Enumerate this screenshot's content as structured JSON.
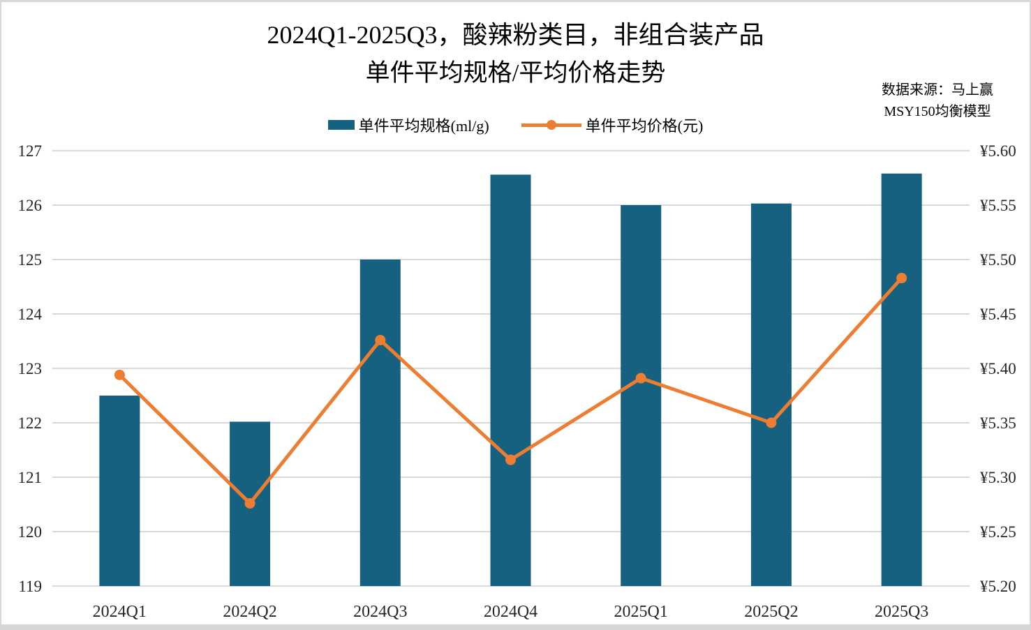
{
  "title": {
    "line1": "2024Q1-2025Q3，酸辣粉类目，非组合装产品",
    "line2": "单件平均规格/平均价格走势"
  },
  "source_note": {
    "line1": "数据来源：马上赢",
    "line2": "MSY150均衡模型"
  },
  "legend": {
    "bar_label": "单件平均规格(ml/g)",
    "line_label": "单件平均价格(元)"
  },
  "colors": {
    "bar": "#176180",
    "line": "#ED7D31",
    "grid": "#d9d9d9",
    "tick_text": "#262626",
    "frame": "#d7d7d7"
  },
  "chart_data": {
    "type": "bar",
    "subtype": "combo-bar-line-dual-axis",
    "title": "2024Q1-2025Q3，酸辣粉类目，非组合装产品 单件平均规格/平均价格走势",
    "categories": [
      "2024Q1",
      "2024Q2",
      "2024Q3",
      "2024Q4",
      "2025Q1",
      "2025Q2",
      "2025Q3"
    ],
    "series": [
      {
        "name": "单件平均规格(ml/g)",
        "type": "bar",
        "axis": "left",
        "values": [
          122.5,
          122.02,
          125.0,
          126.56,
          126.0,
          126.03,
          126.58
        ]
      },
      {
        "name": "单件平均价格(元)",
        "type": "line",
        "axis": "right",
        "values": [
          5.394,
          5.276,
          5.426,
          5.316,
          5.391,
          5.35,
          5.483
        ]
      }
    ],
    "left_axis": {
      "min": 119,
      "max": 127,
      "step": 1,
      "tick_labels": [
        "119",
        "120",
        "121",
        "122",
        "123",
        "124",
        "125",
        "126",
        "127"
      ]
    },
    "right_axis": {
      "min": 5.2,
      "max": 5.6,
      "step": 0.05,
      "tick_labels": [
        "¥5.20",
        "¥5.25",
        "¥5.30",
        "¥5.35",
        "¥5.40",
        "¥5.45",
        "¥5.50",
        "¥5.55",
        "¥5.60"
      ]
    },
    "grid": "horizontal",
    "legend_position": "top"
  }
}
